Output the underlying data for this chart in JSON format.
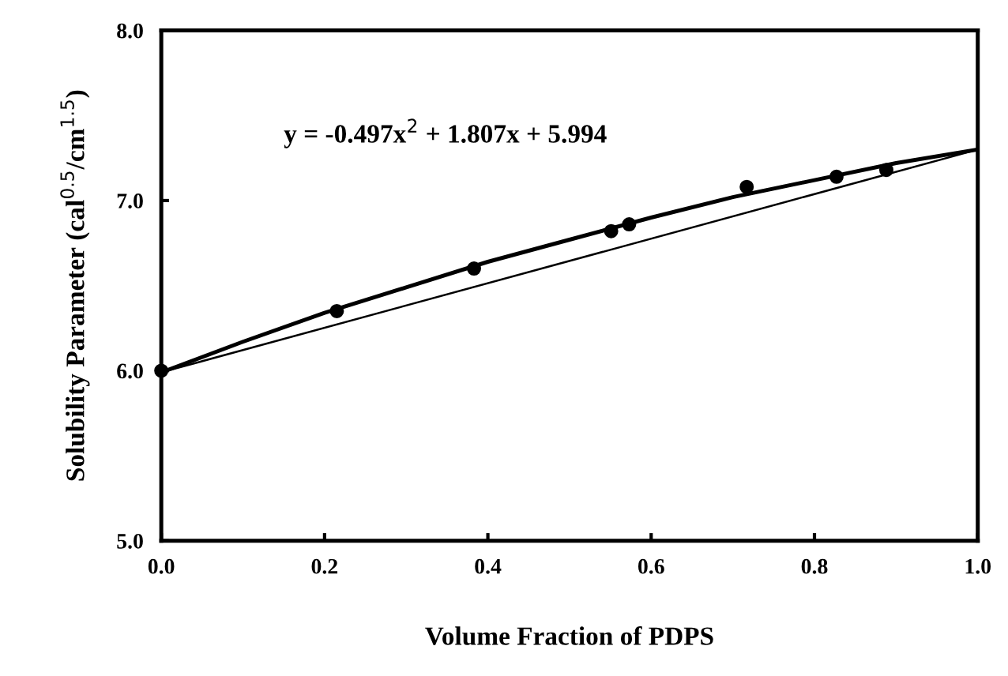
{
  "chart_data": {
    "type": "line",
    "xlabel": "Volume Fraction of PDPS",
    "ylabel": "Solubility Parameter (cal$^{0.5}$/cm$^{1.5}$)",
    "xlim": [
      0,
      1
    ],
    "ylim": [
      5,
      8
    ],
    "xticks": [
      {
        "value": 0,
        "label": "0.0"
      },
      {
        "value": 0.2,
        "label": "0.2"
      },
      {
        "value": 0.4,
        "label": "0.4"
      },
      {
        "value": 0.6,
        "label": "0.6"
      },
      {
        "value": 0.8,
        "label": "0.8"
      },
      {
        "value": 1,
        "label": "1.0"
      }
    ],
    "yticks": [
      {
        "value": 5,
        "label": "5.0"
      },
      {
        "value": 6,
        "label": "6.0"
      },
      {
        "value": 7,
        "label": "7.0"
      },
      {
        "value": 8,
        "label": "8.0"
      }
    ],
    "series": [
      {
        "type": "scatter",
        "color": "#000000",
        "marker": "circle",
        "x": [
          0,
          0.215,
          0.383,
          0.551,
          0.573,
          0.717,
          0.827,
          0.888
        ],
        "values": [
          6.0,
          6.35,
          6.6,
          6.82,
          6.86,
          7.08,
          7.14,
          7.18
        ]
      },
      {
        "color": "#000000",
        "x": [
          0,
          0.1,
          0.2,
          0.3,
          0.4,
          0.5,
          0.6,
          0.7,
          0.8,
          0.9,
          1.0
        ],
        "values": [
          5.99,
          6.17,
          6.34,
          6.49,
          6.64,
          6.77,
          6.9,
          7.02,
          7.12,
          7.22,
          7.3
        ]
      },
      {
        "color": "#000000",
        "x": [
          0,
          1
        ],
        "values": [
          5.99,
          7.3
        ]
      }
    ],
    "annotations": [
      "y = -0.497x$^{2}$ + 1.807x + 5.994"
    ]
  }
}
